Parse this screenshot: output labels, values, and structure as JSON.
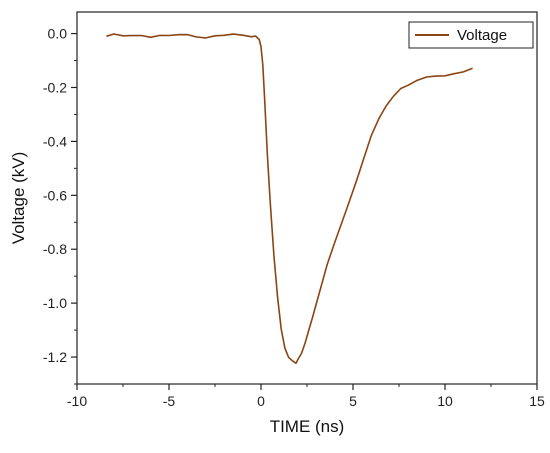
{
  "chart_data": {
    "type": "line",
    "title": "",
    "xlabel": "TIME (ns)",
    "ylabel": "Voltage (kV)",
    "xlim": [
      -10,
      15
    ],
    "ylim": [
      -1.3,
      0.08
    ],
    "xticks": [
      -10,
      -5,
      0,
      5,
      10,
      15
    ],
    "xtick_labels": [
      "-10",
      "-5",
      "0",
      "5",
      "10",
      "15"
    ],
    "yticks": [
      0.0,
      -0.2,
      -0.4,
      -0.6,
      -0.8,
      -1.0,
      -1.2
    ],
    "ytick_labels": [
      "0.0",
      "-0.2",
      "-0.4",
      "-0.6",
      "-0.8",
      "-1.0",
      "-1.2"
    ],
    "grid": false,
    "legend_position": "top-right",
    "series": [
      {
        "name": "Voltage",
        "color": "#8b4513",
        "x": [
          -8.4,
          -8.0,
          -7.5,
          -7.0,
          -6.5,
          -6.0,
          -5.5,
          -5.0,
          -4.5,
          -4.0,
          -3.5,
          -3.0,
          -2.5,
          -2.0,
          -1.5,
          -1.0,
          -0.5,
          -0.3,
          -0.1,
          0.0,
          0.1,
          0.2,
          0.35,
          0.5,
          0.7,
          0.9,
          1.1,
          1.3,
          1.5,
          1.7,
          1.9,
          2.0,
          2.2,
          2.4,
          2.6,
          2.8,
          3.0,
          3.3,
          3.6,
          4.0,
          4.4,
          4.8,
          5.2,
          5.6,
          6.0,
          6.4,
          6.8,
          7.2,
          7.6,
          8.0,
          8.5,
          9.0,
          9.5,
          10.0,
          10.5,
          11.0,
          11.5
        ],
        "values": [
          -0.01,
          -0.005,
          -0.012,
          -0.008,
          -0.004,
          -0.01,
          -0.006,
          -0.01,
          -0.008,
          -0.005,
          -0.01,
          -0.012,
          -0.007,
          -0.009,
          -0.006,
          -0.008,
          -0.01,
          -0.005,
          -0.02,
          -0.05,
          -0.12,
          -0.25,
          -0.45,
          -0.62,
          -0.82,
          -0.98,
          -1.1,
          -1.17,
          -1.2,
          -1.21,
          -1.22,
          -1.21,
          -1.19,
          -1.15,
          -1.1,
          -1.05,
          -1.0,
          -0.93,
          -0.86,
          -0.78,
          -0.7,
          -0.62,
          -0.54,
          -0.46,
          -0.38,
          -0.32,
          -0.27,
          -0.23,
          -0.2,
          -0.19,
          -0.175,
          -0.165,
          -0.16,
          -0.155,
          -0.145,
          -0.14,
          -0.13
        ]
      }
    ]
  }
}
